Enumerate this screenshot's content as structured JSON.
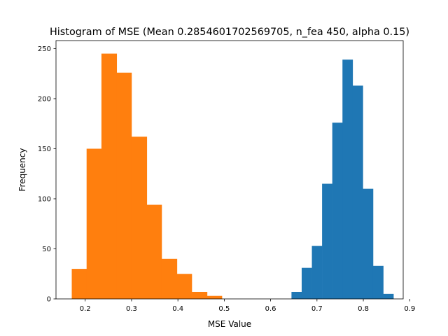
{
  "chart_data": {
    "type": "bar",
    "title": "Histogram of MSE (Mean 0.2854601702569705, n_fea 450, alpha 0.15)",
    "xlabel": "MSE Value",
    "ylabel": "Frequency",
    "xlim": [
      0.137,
      0.886
    ],
    "ylim": [
      0,
      258
    ],
    "xticks": [
      0.2,
      0.3,
      0.4,
      0.5,
      0.6,
      0.7,
      0.8,
      0.9
    ],
    "xtick_labels": [
      "0.2",
      "0.3",
      "0.4",
      "0.5",
      "0.6",
      "0.7",
      "0.8",
      "0.9"
    ],
    "yticks": [
      0,
      50,
      100,
      150,
      200,
      250
    ],
    "ytick_labels": [
      "0",
      "50",
      "100",
      "150",
      "200",
      "250"
    ],
    "grid": false,
    "series": [
      {
        "color": "#1f77b4",
        "bin_edges": [
          0.645,
          0.667,
          0.689,
          0.711,
          0.733,
          0.755,
          0.777,
          0.799,
          0.821,
          0.843,
          0.865
        ],
        "values": [
          7,
          31,
          53,
          115,
          176,
          239,
          213,
          110,
          33,
          5
        ]
      },
      {
        "color": "#ff7f0e",
        "bin_edges": [
          0.171,
          0.203,
          0.235,
          0.268,
          0.3,
          0.333,
          0.365,
          0.398,
          0.43,
          0.463,
          0.495
        ],
        "values": [
          30,
          150,
          245,
          226,
          162,
          94,
          40,
          25,
          7,
          3
        ]
      }
    ]
  }
}
